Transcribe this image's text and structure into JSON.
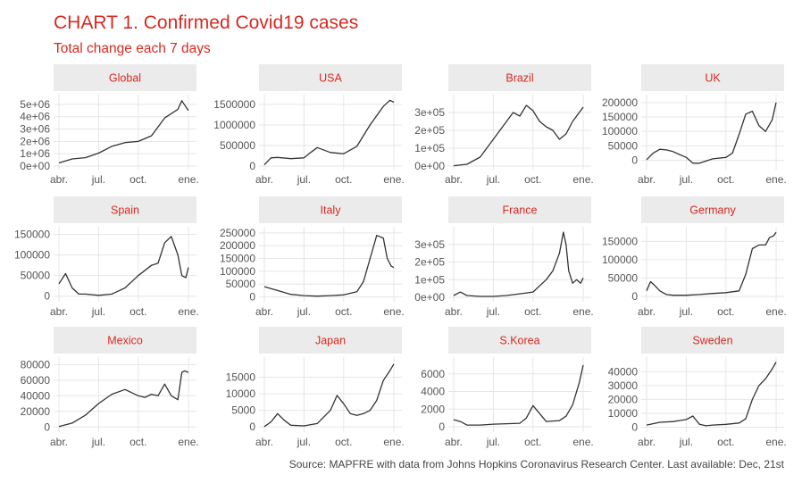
{
  "title": "CHART 1. Confirmed Covid19 cases",
  "subtitle": "Total change each 7 days",
  "source": "Source: MAPFRE with data from Johns Hopkins Coronavirus Research Center. Last available: Dec, 21st",
  "colors": {
    "accent": "#d62a22",
    "line": "#333333",
    "strip": "#ebebeb",
    "grid": "#e6e6e6"
  },
  "chart_data": [
    {
      "type": "line",
      "title": "Global",
      "ylim": [
        0,
        5500000
      ],
      "yticks": [
        {
          "v": 0,
          "l": "0e+00"
        },
        {
          "v": 1000000,
          "l": "1e+06"
        },
        {
          "v": 2000000,
          "l": "2e+06"
        },
        {
          "v": 3000000,
          "l": "3e+06"
        },
        {
          "v": 4000000,
          "l": "4e+06"
        },
        {
          "v": 5000000,
          "l": "5e+06"
        }
      ],
      "xticks": [
        "abr.",
        "jul.",
        "oct.",
        "ene."
      ],
      "x": [
        0,
        1,
        2,
        3,
        4,
        5,
        6,
        7,
        8,
        9,
        9.3,
        9.6,
        9.8
      ],
      "y": [
        250000,
        580000,
        680000,
        1050000,
        1600000,
        1900000,
        2000000,
        2450000,
        3900000,
        4600000,
        5300000,
        4800000,
        4500000
      ]
    },
    {
      "type": "line",
      "title": "USA",
      "ylim": [
        0,
        1650000
      ],
      "yticks": [
        {
          "v": 0,
          "l": "0"
        },
        {
          "v": 500000,
          "l": "500000"
        },
        {
          "v": 1000000,
          "l": "1000000"
        },
        {
          "v": 1500000,
          "l": "1500000"
        }
      ],
      "xticks": [
        "abr.",
        "jul.",
        "oct.",
        "ene."
      ],
      "x": [
        0,
        0.5,
        1,
        2,
        3,
        3.5,
        4,
        5,
        6,
        7,
        8,
        9,
        9.5,
        9.8
      ],
      "y": [
        30000,
        200000,
        210000,
        180000,
        200000,
        330000,
        450000,
        330000,
        300000,
        480000,
        1000000,
        1450000,
        1600000,
        1550000
      ]
    },
    {
      "type": "line",
      "title": "Brazil",
      "ylim": [
        0,
        380000
      ],
      "yticks": [
        {
          "v": 0,
          "l": "0e+00"
        },
        {
          "v": 100000,
          "l": "1e+05"
        },
        {
          "v": 200000,
          "l": "2e+05"
        },
        {
          "v": 300000,
          "l": "3e+05"
        }
      ],
      "xticks": [
        "abr.",
        "jul.",
        "oct.",
        "ene."
      ],
      "x": [
        0,
        1,
        2,
        3,
        4,
        4.5,
        5,
        5.5,
        6,
        6.5,
        7,
        7.5,
        8,
        8.5,
        9,
        9.5,
        9.8
      ],
      "y": [
        2000,
        10000,
        50000,
        150000,
        250000,
        300000,
        280000,
        340000,
        310000,
        250000,
        220000,
        200000,
        150000,
        180000,
        250000,
        300000,
        330000
      ]
    },
    {
      "type": "line",
      "title": "UK",
      "ylim": [
        -20000,
        215000
      ],
      "yticks": [
        {
          "v": 0,
          "l": "0"
        },
        {
          "v": 50000,
          "l": "50000"
        },
        {
          "v": 100000,
          "l": "100000"
        },
        {
          "v": 150000,
          "l": "150000"
        },
        {
          "v": 200000,
          "l": "200000"
        }
      ],
      "xticks": [
        "abr.",
        "jul.",
        "oct.",
        "ene."
      ],
      "x": [
        0,
        0.5,
        1,
        1.5,
        2,
        2.5,
        3,
        3.5,
        4,
        5,
        6,
        6.5,
        7,
        7.5,
        8,
        8.5,
        9,
        9.5,
        9.8
      ],
      "y": [
        2000,
        25000,
        38000,
        36000,
        30000,
        20000,
        10000,
        -10000,
        -10000,
        5000,
        10000,
        25000,
        90000,
        160000,
        170000,
        120000,
        100000,
        140000,
        200000
      ]
    },
    {
      "type": "line",
      "title": "Spain",
      "ylim": [
        -5000,
        160000
      ],
      "yticks": [
        {
          "v": 0,
          "l": "0"
        },
        {
          "v": 50000,
          "l": "50000"
        },
        {
          "v": 100000,
          "l": "100000"
        },
        {
          "v": 150000,
          "l": "150000"
        }
      ],
      "xticks": [
        "abr.",
        "jul.",
        "oct.",
        "ene."
      ],
      "x": [
        0,
        0.5,
        1,
        1.5,
        2,
        3,
        4,
        5,
        6,
        7,
        7.5,
        8,
        8.5,
        9,
        9.3,
        9.6,
        9.8
      ],
      "y": [
        30000,
        55000,
        20000,
        5000,
        5000,
        2000,
        5000,
        20000,
        50000,
        75000,
        80000,
        130000,
        145000,
        100000,
        50000,
        45000,
        70000
      ]
    },
    {
      "type": "line",
      "title": "Italy",
      "ylim": [
        -5000,
        260000
      ],
      "yticks": [
        {
          "v": 0,
          "l": "0"
        },
        {
          "v": 50000,
          "l": "50000"
        },
        {
          "v": 100000,
          "l": "100000"
        },
        {
          "v": 150000,
          "l": "150000"
        },
        {
          "v": 200000,
          "l": "200000"
        },
        {
          "v": 250000,
          "l": "250000"
        }
      ],
      "xticks": [
        "abr.",
        "jul.",
        "oct.",
        "ene."
      ],
      "x": [
        0,
        1,
        2,
        3,
        4,
        5,
        6,
        7,
        7.5,
        8,
        8.5,
        9,
        9.3,
        9.6,
        9.8
      ],
      "y": [
        40000,
        25000,
        10000,
        5000,
        3000,
        5000,
        8000,
        20000,
        60000,
        150000,
        240000,
        230000,
        150000,
        120000,
        115000
      ]
    },
    {
      "type": "line",
      "title": "France",
      "ylim": [
        -5000,
        380000
      ],
      "yticks": [
        {
          "v": 0,
          "l": "0e+00"
        },
        {
          "v": 100000,
          "l": "1e+05"
        },
        {
          "v": 200000,
          "l": "2e+05"
        },
        {
          "v": 300000,
          "l": "3e+05"
        }
      ],
      "xticks": [
        "abr.",
        "jul.",
        "oct.",
        "ene."
      ],
      "x": [
        0,
        0.5,
        1,
        2,
        3,
        4,
        5,
        6,
        7,
        7.5,
        8,
        8.3,
        8.5,
        8.7,
        9,
        9.3,
        9.6,
        9.8
      ],
      "y": [
        10000,
        30000,
        10000,
        5000,
        5000,
        10000,
        20000,
        30000,
        100000,
        150000,
        250000,
        370000,
        300000,
        150000,
        80000,
        100000,
        80000,
        110000
      ]
    },
    {
      "type": "line",
      "title": "Germany",
      "ylim": [
        -5000,
        180000
      ],
      "yticks": [
        {
          "v": 0,
          "l": "0"
        },
        {
          "v": 50000,
          "l": "50000"
        },
        {
          "v": 100000,
          "l": "100000"
        },
        {
          "v": 150000,
          "l": "150000"
        }
      ],
      "xticks": [
        "abr.",
        "jul.",
        "oct.",
        "ene."
      ],
      "x": [
        0,
        0.3,
        0.6,
        1,
        1.5,
        2,
        3,
        4,
        5,
        6,
        7,
        7.5,
        8,
        8.5,
        9,
        9.3,
        9.6,
        9.8
      ],
      "y": [
        15000,
        40000,
        30000,
        15000,
        5000,
        3000,
        3000,
        5000,
        8000,
        10000,
        15000,
        60000,
        130000,
        140000,
        140000,
        160000,
        165000,
        175000
      ]
    },
    {
      "type": "line",
      "title": "Mexico",
      "ylim": [
        -2000,
        85000
      ],
      "yticks": [
        {
          "v": 0,
          "l": "0"
        },
        {
          "v": 20000,
          "l": "20000"
        },
        {
          "v": 40000,
          "l": "40000"
        },
        {
          "v": 60000,
          "l": "60000"
        },
        {
          "v": 80000,
          "l": "80000"
        }
      ],
      "xticks": [
        "abr.",
        "jul.",
        "oct.",
        "ene."
      ],
      "x": [
        0,
        1,
        2,
        3,
        4,
        5,
        6,
        6.5,
        7,
        7.5,
        8,
        8.5,
        9,
        9.3,
        9.5,
        9.8
      ],
      "y": [
        500,
        5000,
        15000,
        30000,
        42000,
        48000,
        40000,
        38000,
        42000,
        40000,
        55000,
        40000,
        35000,
        70000,
        72000,
        70000
      ]
    },
    {
      "type": "line",
      "title": "Japan",
      "ylim": [
        -500,
        20000
      ],
      "yticks": [
        {
          "v": 0,
          "l": "0"
        },
        {
          "v": 5000,
          "l": "5000"
        },
        {
          "v": 10000,
          "l": "10000"
        },
        {
          "v": 15000,
          "l": "15000"
        }
      ],
      "xticks": [
        "abr.",
        "jul.",
        "oct.",
        "ene."
      ],
      "x": [
        0,
        0.5,
        1,
        1.5,
        2,
        3,
        4,
        5,
        5.5,
        6,
        6.5,
        7,
        7.5,
        8,
        8.5,
        9,
        9.5,
        9.8
      ],
      "y": [
        100,
        1500,
        4000,
        2000,
        500,
        300,
        1000,
        5000,
        9500,
        7000,
        4000,
        3500,
        4000,
        5000,
        8000,
        14000,
        17000,
        19000
      ]
    },
    {
      "type": "line",
      "title": "S.Korea",
      "ylim": [
        -200,
        7500
      ],
      "yticks": [
        {
          "v": 0,
          "l": "0"
        },
        {
          "v": 2000,
          "l": "2000"
        },
        {
          "v": 4000,
          "l": "4000"
        },
        {
          "v": 6000,
          "l": "6000"
        }
      ],
      "xticks": [
        "abr.",
        "jul.",
        "oct.",
        "ene."
      ],
      "x": [
        0,
        0.5,
        1,
        2,
        3,
        4,
        5,
        5.5,
        6,
        6.5,
        7,
        8,
        8.5,
        9,
        9.5,
        9.8
      ],
      "y": [
        800,
        600,
        200,
        200,
        300,
        350,
        400,
        1000,
        2400,
        1500,
        600,
        700,
        1200,
        2500,
        5000,
        7000
      ]
    },
    {
      "type": "line",
      "title": "Sweden",
      "ylim": [
        -1000,
        48000
      ],
      "yticks": [
        {
          "v": 0,
          "l": "0"
        },
        {
          "v": 10000,
          "l": "10000"
        },
        {
          "v": 20000,
          "l": "20000"
        },
        {
          "v": 30000,
          "l": "30000"
        },
        {
          "v": 40000,
          "l": "40000"
        }
      ],
      "xticks": [
        "abr.",
        "jul.",
        "oct.",
        "ene."
      ],
      "x": [
        0,
        1,
        2,
        3,
        3.5,
        4,
        4.5,
        5,
        6,
        7,
        7.5,
        8,
        8.5,
        9,
        9.5,
        9.8
      ],
      "y": [
        1500,
        3500,
        4000,
        5500,
        8000,
        2000,
        1000,
        1500,
        2000,
        3000,
        6000,
        20000,
        30000,
        35000,
        42000,
        47000
      ]
    }
  ]
}
